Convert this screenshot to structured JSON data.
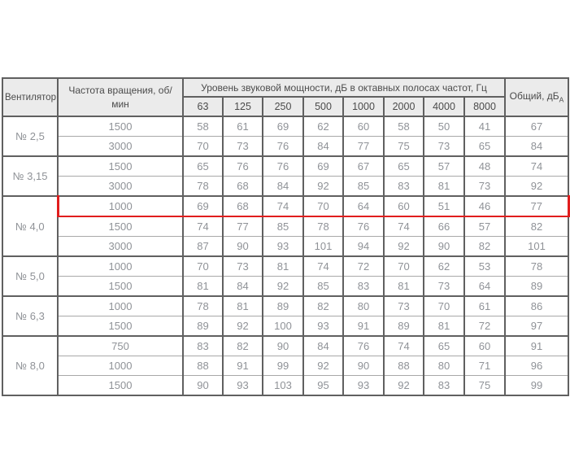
{
  "colors": {
    "header_bg": "#ebebeb",
    "border_dark": "#606060",
    "border_light": "#a8a8a8",
    "text_header": "#4b4b4b",
    "text_data": "#8f9297",
    "highlight_red": "#e11d1d",
    "page_bg": "#ffffff"
  },
  "table": {
    "col_fan": "Вентилятор",
    "col_speed": "Частота вращения, об/мин",
    "col_levels": "Уровень звуковой мощности, дБ в октавных полосах частот, Гц",
    "col_total": "Общий, дБ",
    "col_total_sub": "А",
    "frequencies": [
      "63",
      "125",
      "250",
      "500",
      "1000",
      "2000",
      "4000",
      "8000"
    ],
    "groups": [
      {
        "fan": "№ 2,5",
        "rows": [
          {
            "speed": "1500",
            "levels": [
              58,
              61,
              69,
              62,
              60,
              58,
              50,
              41
            ],
            "total": "67"
          },
          {
            "speed": "3000",
            "levels": [
              70,
              73,
              76,
              84,
              77,
              75,
              73,
              65
            ],
            "total": "84"
          }
        ]
      },
      {
        "fan": "№ 3,15",
        "rows": [
          {
            "speed": "1500",
            "levels": [
              65,
              76,
              76,
              69,
              67,
              65,
              57,
              48
            ],
            "total": "74"
          },
          {
            "speed": "3000",
            "levels": [
              78,
              68,
              84,
              92,
              85,
              83,
              81,
              73
            ],
            "total": "92"
          }
        ]
      },
      {
        "fan": "№ 4,0",
        "rows": [
          {
            "speed": "1000",
            "levels": [
              69,
              68,
              74,
              70,
              64,
              60,
              51,
              46
            ],
            "total": "77",
            "highlighted": true
          },
          {
            "speed": "1500",
            "levels": [
              74,
              77,
              85,
              78,
              76,
              74,
              66,
              57
            ],
            "total": "82"
          },
          {
            "speed": "3000",
            "levels": [
              87,
              90,
              93,
              101,
              94,
              92,
              90,
              82
            ],
            "total": "101"
          }
        ]
      },
      {
        "fan": "№ 5,0",
        "rows": [
          {
            "speed": "1000",
            "levels": [
              70,
              73,
              81,
              74,
              72,
              70,
              62,
              53
            ],
            "total": "78"
          },
          {
            "speed": "1500",
            "levels": [
              81,
              84,
              92,
              85,
              83,
              81,
              73,
              64
            ],
            "total": "89"
          }
        ]
      },
      {
        "fan": "№ 6,3",
        "rows": [
          {
            "speed": "1000",
            "levels": [
              78,
              81,
              89,
              82,
              80,
              73,
              70,
              61
            ],
            "total": "86"
          },
          {
            "speed": "1500",
            "levels": [
              89,
              92,
              100,
              93,
              91,
              89,
              81,
              72
            ],
            "total": "97"
          }
        ]
      },
      {
        "fan": "№ 8,0",
        "rows": [
          {
            "speed": "750",
            "levels": [
              83,
              82,
              90,
              84,
              76,
              74,
              65,
              60
            ],
            "total": "91"
          },
          {
            "speed": "1000",
            "levels": [
              88,
              91,
              99,
              92,
              90,
              88,
              80,
              71
            ],
            "total": "96"
          },
          {
            "speed": "1500",
            "levels": [
              90,
              93,
              103,
              95,
              93,
              92,
              83,
              75
            ],
            "total": "99"
          }
        ]
      }
    ]
  },
  "chart_data": {
    "type": "table",
    "title": "Уровень звуковой мощности, дБ в октавных полосах частот, Гц",
    "columns": [
      "Вентилятор",
      "Частота вращения, об/мин",
      "63",
      "125",
      "250",
      "500",
      "1000",
      "2000",
      "4000",
      "8000",
      "Общий, дБА"
    ],
    "rows": [
      [
        "№ 2,5",
        1500,
        58,
        61,
        69,
        62,
        60,
        58,
        50,
        41,
        67
      ],
      [
        "№ 2,5",
        3000,
        70,
        73,
        76,
        84,
        77,
        75,
        73,
        65,
        84
      ],
      [
        "№ 3,15",
        1500,
        65,
        76,
        76,
        69,
        67,
        65,
        57,
        48,
        74
      ],
      [
        "№ 3,15",
        3000,
        78,
        68,
        84,
        92,
        85,
        83,
        81,
        73,
        92
      ],
      [
        "№ 4,0",
        1000,
        69,
        68,
        74,
        70,
        64,
        60,
        51,
        46,
        77
      ],
      [
        "№ 4,0",
        1500,
        74,
        77,
        85,
        78,
        76,
        74,
        66,
        57,
        82
      ],
      [
        "№ 4,0",
        3000,
        87,
        90,
        93,
        101,
        94,
        92,
        90,
        82,
        101
      ],
      [
        "№ 5,0",
        1000,
        70,
        73,
        81,
        74,
        72,
        70,
        62,
        53,
        78
      ],
      [
        "№ 5,0",
        1500,
        81,
        84,
        92,
        85,
        83,
        81,
        73,
        64,
        89
      ],
      [
        "№ 6,3",
        1000,
        78,
        81,
        89,
        82,
        80,
        73,
        70,
        61,
        86
      ],
      [
        "№ 6,3",
        1500,
        89,
        92,
        100,
        93,
        91,
        89,
        81,
        72,
        97
      ],
      [
        "№ 8,0",
        750,
        83,
        82,
        90,
        84,
        76,
        74,
        65,
        60,
        91
      ],
      [
        "№ 8,0",
        1000,
        88,
        91,
        99,
        92,
        90,
        88,
        80,
        71,
        96
      ],
      [
        "№ 8,0",
        1500,
        90,
        93,
        103,
        95,
        93,
        92,
        83,
        75,
        99
      ]
    ],
    "highlighted_row_index": 4,
    "legend_position": "none",
    "grid": true
  }
}
